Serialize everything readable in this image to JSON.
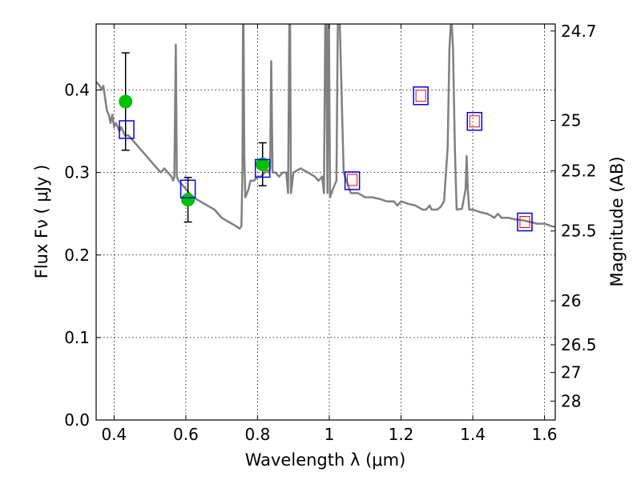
{
  "chart_data": {
    "type": "scatter",
    "xlabel": "Wavelength  λ (μm)",
    "ylabel": "Flux  Fν  ( μJy )",
    "y2label": "Magnitude (AB)",
    "xlim": [
      0.35,
      1.63
    ],
    "ylim": [
      0.0,
      0.48
    ],
    "grid": true,
    "x_ticks": [
      {
        "value": 0.4,
        "label": "0.4"
      },
      {
        "value": 0.6,
        "label": "0.6"
      },
      {
        "value": 0.8,
        "label": "0.8"
      },
      {
        "value": 1.0,
        "label": "1"
      },
      {
        "value": 1.2,
        "label": "1.2"
      },
      {
        "value": 1.4,
        "label": "1.4"
      },
      {
        "value": 1.6,
        "label": "1.6"
      }
    ],
    "y_ticks": [
      {
        "value": 0.0,
        "label": "0.0"
      },
      {
        "value": 0.1,
        "label": "0.1"
      },
      {
        "value": 0.2,
        "label": "0.2"
      },
      {
        "value": 0.3,
        "label": "0.3"
      },
      {
        "value": 0.4,
        "label": "0.4"
      }
    ],
    "y2_ticks": [
      {
        "flux": 0.4715,
        "label": "24.7"
      },
      {
        "flux": 0.3631,
        "label": "25"
      },
      {
        "flux": 0.302,
        "label": "25.2"
      },
      {
        "flux": 0.2291,
        "label": "25.5"
      },
      {
        "flux": 0.1445,
        "label": "26"
      },
      {
        "flux": 0.0912,
        "label": "26.5"
      },
      {
        "flux": 0.0575,
        "label": "27"
      },
      {
        "flux": 0.0229,
        "label": "28"
      }
    ],
    "series": [
      {
        "kind": "sed_model",
        "color": "#808080",
        "points": [
          [
            0.35,
            0.41
          ],
          [
            0.36,
            0.405
          ],
          [
            0.365,
            0.4
          ],
          [
            0.37,
            0.405
          ],
          [
            0.375,
            0.39
          ],
          [
            0.38,
            0.375
          ],
          [
            0.385,
            0.37
          ],
          [
            0.39,
            0.36
          ],
          [
            0.395,
            0.37
          ],
          [
            0.4,
            0.355
          ],
          [
            0.405,
            0.36
          ],
          [
            0.41,
            0.355
          ],
          [
            0.415,
            0.35
          ],
          [
            0.42,
            0.355
          ],
          [
            0.425,
            0.35
          ],
          [
            0.43,
            0.345
          ],
          [
            0.44,
            0.345
          ],
          [
            0.45,
            0.34
          ],
          [
            0.46,
            0.335
          ],
          [
            0.47,
            0.33
          ],
          [
            0.48,
            0.325
          ],
          [
            0.49,
            0.32
          ],
          [
            0.5,
            0.315
          ],
          [
            0.51,
            0.31
          ],
          [
            0.52,
            0.305
          ],
          [
            0.53,
            0.3
          ],
          [
            0.54,
            0.305
          ],
          [
            0.55,
            0.3
          ],
          [
            0.56,
            0.295
          ],
          [
            0.565,
            0.29
          ],
          [
            0.568,
            0.295
          ],
          [
            0.572,
            0.455
          ],
          [
            0.575,
            0.295
          ],
          [
            0.58,
            0.29
          ],
          [
            0.6,
            0.28
          ],
          [
            0.62,
            0.27
          ],
          [
            0.64,
            0.265
          ],
          [
            0.66,
            0.26
          ],
          [
            0.68,
            0.255
          ],
          [
            0.7,
            0.245
          ],
          [
            0.72,
            0.24
          ],
          [
            0.74,
            0.235
          ],
          [
            0.75,
            0.232
          ],
          [
            0.755,
            0.235
          ],
          [
            0.758,
            0.3
          ],
          [
            0.76,
            0.55
          ],
          [
            0.763,
            0.32
          ],
          [
            0.766,
            0.27
          ],
          [
            0.775,
            0.28
          ],
          [
            0.78,
            0.29
          ],
          [
            0.79,
            0.29
          ],
          [
            0.8,
            0.295
          ],
          [
            0.81,
            0.295
          ],
          [
            0.82,
            0.3
          ],
          [
            0.825,
            0.305
          ],
          [
            0.83,
            0.3
          ],
          [
            0.835,
            0.305
          ],
          [
            0.838,
            0.435
          ],
          [
            0.842,
            0.3
          ],
          [
            0.85,
            0.3
          ],
          [
            0.86,
            0.295
          ],
          [
            0.87,
            0.3
          ],
          [
            0.88,
            0.3
          ],
          [
            0.885,
            0.275
          ],
          [
            0.89,
            0.55
          ],
          [
            0.893,
            0.275
          ],
          [
            0.9,
            0.3
          ],
          [
            0.92,
            0.305
          ],
          [
            0.94,
            0.3
          ],
          [
            0.96,
            0.295
          ],
          [
            0.97,
            0.29
          ],
          [
            0.98,
            0.295
          ],
          [
            0.985,
            0.275
          ],
          [
            0.99,
            0.55
          ],
          [
            0.995,
            0.275
          ],
          [
            0.998,
            0.55
          ],
          [
            1.002,
            0.27
          ],
          [
            1.01,
            0.28
          ],
          [
            1.02,
            0.29
          ],
          [
            1.025,
            0.55
          ],
          [
            1.04,
            0.3
          ],
          [
            1.06,
            0.275
          ],
          [
            1.08,
            0.275
          ],
          [
            1.1,
            0.27
          ],
          [
            1.12,
            0.27
          ],
          [
            1.14,
            0.268
          ],
          [
            1.16,
            0.265
          ],
          [
            1.18,
            0.265
          ],
          [
            1.19,
            0.26
          ],
          [
            1.2,
            0.265
          ],
          [
            1.22,
            0.262
          ],
          [
            1.24,
            0.26
          ],
          [
            1.26,
            0.255
          ],
          [
            1.27,
            0.255
          ],
          [
            1.28,
            0.26
          ],
          [
            1.285,
            0.255
          ],
          [
            1.29,
            0.255
          ],
          [
            1.3,
            0.255
          ],
          [
            1.31,
            0.258
          ],
          [
            1.32,
            0.265
          ],
          [
            1.33,
            0.33
          ],
          [
            1.335,
            0.45
          ],
          [
            1.34,
            0.49
          ],
          [
            1.345,
            0.45
          ],
          [
            1.35,
            0.33
          ],
          [
            1.355,
            0.255
          ],
          [
            1.37,
            0.256
          ],
          [
            1.38,
            0.28
          ],
          [
            1.383,
            0.32
          ],
          [
            1.386,
            0.28
          ],
          [
            1.39,
            0.255
          ],
          [
            1.4,
            0.255
          ],
          [
            1.42,
            0.252
          ],
          [
            1.44,
            0.25
          ],
          [
            1.45,
            0.248
          ],
          [
            1.46,
            0.245
          ],
          [
            1.47,
            0.25
          ],
          [
            1.48,
            0.245
          ],
          [
            1.5,
            0.245
          ],
          [
            1.52,
            0.243
          ],
          [
            1.54,
            0.242
          ],
          [
            1.56,
            0.24
          ],
          [
            1.58,
            0.238
          ],
          [
            1.6,
            0.238
          ],
          [
            1.62,
            0.235
          ],
          [
            1.63,
            0.234
          ]
        ]
      },
      {
        "kind": "observed",
        "marker": "circle",
        "color": "#00c000",
        "points": [
          {
            "x": 0.432,
            "y": 0.386,
            "yerr": 0.059
          },
          {
            "x": 0.606,
            "y": 0.267,
            "yerr": 0.027
          },
          {
            "x": 0.814,
            "y": 0.31,
            "yerr": 0.026
          }
        ]
      },
      {
        "kind": "model_photometry",
        "marker": "square",
        "color": "#0000ff",
        "points": [
          {
            "x": 0.435,
            "y": 0.352
          },
          {
            "x": 0.606,
            "y": 0.28
          },
          {
            "x": 0.814,
            "y": 0.305
          },
          {
            "x": 1.064,
            "y": 0.29
          },
          {
            "x": 1.255,
            "y": 0.393
          },
          {
            "x": 1.405,
            "y": 0.362
          },
          {
            "x": 1.545,
            "y": 0.24
          }
        ]
      },
      {
        "kind": "upper_limit",
        "marker": "square",
        "color": "#ff0000",
        "points": [
          {
            "x": 1.064,
            "y": 0.291
          },
          {
            "x": 1.255,
            "y": 0.393
          },
          {
            "x": 1.405,
            "y": 0.362
          },
          {
            "x": 1.545,
            "y": 0.24
          }
        ]
      }
    ]
  }
}
